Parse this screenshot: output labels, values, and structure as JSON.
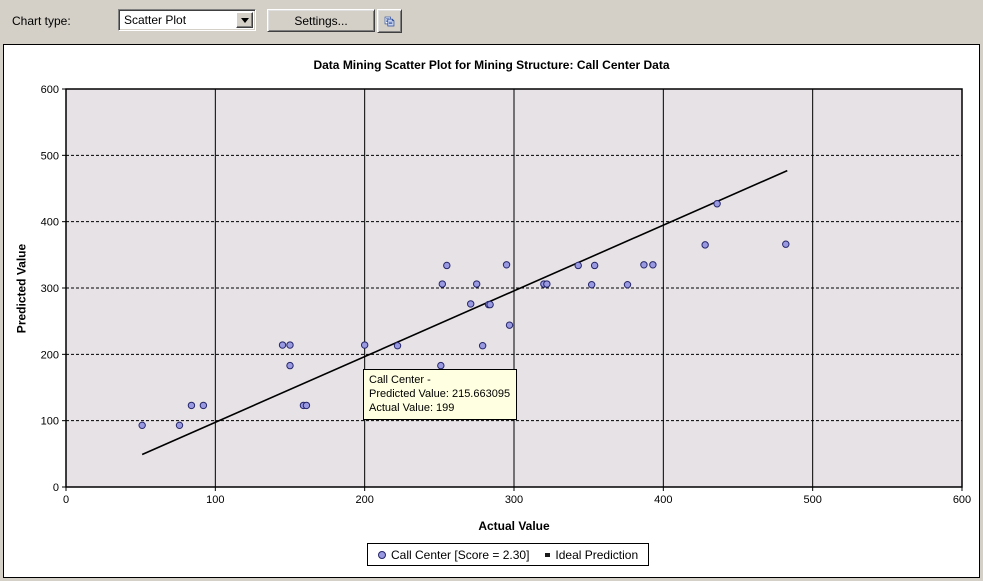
{
  "toolbar": {
    "chart_type_label": "Chart type:",
    "chart_type_value": "Scatter Plot",
    "settings_button_label": "Settings...",
    "copy_button_icon": "copy-icon"
  },
  "tooltip": {
    "line1": "Call Center -",
    "line2": "Predicted Value: 215.663095",
    "line3": "Actual Value: 199"
  },
  "legend": {
    "series_label": "Call Center [Score = 2.30]",
    "line_label": "Ideal Prediction"
  },
  "colors": {
    "toolbar_bg": "#d4d0c8",
    "panel_bg": "#ffffff",
    "plot_bg": "#e6e2e6",
    "grid_line": "#000000",
    "point_fill": "#9999e1",
    "point_stroke": "#26266b",
    "ideal_line": "#000000",
    "tooltip_bg": "#ffffe1"
  },
  "chart_data": {
    "type": "scatter",
    "title": "Data Mining Scatter Plot for Mining Structure: Call Center Data",
    "xlabel": "Actual Value",
    "ylabel": "Predicted Value",
    "xlim": [
      0,
      600
    ],
    "ylim": [
      0,
      600
    ],
    "x_ticks": [
      0,
      100,
      200,
      300,
      400,
      500,
      600
    ],
    "y_ticks": [
      0,
      100,
      200,
      300,
      400,
      500,
      600
    ],
    "grid": {
      "vertical": "solid",
      "horizontal": "dashed"
    },
    "legend_position": "bottom",
    "series": [
      {
        "name": "Call Center [Score = 2.30]",
        "type": "scatter",
        "marker": "circle",
        "points": [
          [
            51,
            93
          ],
          [
            76,
            93
          ],
          [
            84,
            123
          ],
          [
            92,
            123
          ],
          [
            159,
            123
          ],
          [
            161,
            123
          ],
          [
            145,
            214
          ],
          [
            150,
            214
          ],
          [
            150,
            183
          ],
          [
            200,
            214
          ],
          [
            222,
            213
          ],
          [
            251,
            183
          ],
          [
            252,
            306
          ],
          [
            255,
            334
          ],
          [
            271,
            276
          ],
          [
            275,
            306
          ],
          [
            279,
            213
          ],
          [
            283,
            275
          ],
          [
            284,
            275
          ],
          [
            295,
            335
          ],
          [
            297,
            244
          ],
          [
            320,
            306
          ],
          [
            322,
            306
          ],
          [
            343,
            334
          ],
          [
            352,
            305
          ],
          [
            354,
            334
          ],
          [
            376,
            305
          ],
          [
            387,
            335
          ],
          [
            393,
            335
          ],
          [
            428,
            365
          ],
          [
            436,
            427
          ],
          [
            482,
            366
          ]
        ]
      },
      {
        "name": "Ideal Prediction",
        "type": "line",
        "points": [
          [
            51,
            49
          ],
          [
            483,
            477
          ]
        ]
      }
    ],
    "highlighted_point": {
      "actual": 199,
      "predicted": 215.663095
    }
  }
}
